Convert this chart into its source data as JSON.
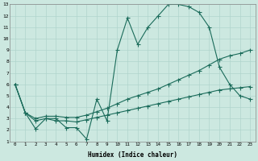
{
  "xlabel": "Humidex (Indice chaleur)",
  "bg_color": "#cce8e0",
  "line_color": "#1a6b5a",
  "grid_color": "#b0d4cc",
  "xlim": [
    -0.5,
    23.5
  ],
  "ylim": [
    1,
    13
  ],
  "xticks": [
    0,
    1,
    2,
    3,
    4,
    5,
    6,
    7,
    8,
    9,
    10,
    11,
    12,
    13,
    14,
    15,
    16,
    17,
    18,
    19,
    20,
    21,
    22,
    23
  ],
  "yticks": [
    1,
    2,
    3,
    4,
    5,
    6,
    7,
    8,
    9,
    10,
    11,
    12,
    13
  ],
  "line1_x": [
    0,
    1,
    2,
    3,
    4,
    5,
    6,
    7,
    8,
    9,
    10,
    11,
    12,
    13,
    14,
    15,
    16,
    17,
    18,
    19,
    20,
    21,
    22,
    23
  ],
  "line1_y": [
    6,
    3.5,
    2.1,
    3.0,
    3.0,
    2.2,
    2.2,
    1.2,
    4.7,
    2.8,
    9.0,
    11.8,
    9.5,
    11.0,
    12.0,
    13.0,
    13.0,
    12.8,
    12.3,
    11.0,
    7.5,
    6.0,
    5.0,
    4.7
  ],
  "line2_x": [
    0,
    1,
    2,
    3,
    4,
    5,
    6,
    7,
    8,
    9,
    10,
    11,
    12,
    13,
    14,
    15,
    16,
    17,
    18,
    19,
    20,
    21,
    22,
    23
  ],
  "line2_y": [
    6,
    3.5,
    3.0,
    3.2,
    3.2,
    3.1,
    3.1,
    3.3,
    3.6,
    3.9,
    4.3,
    4.7,
    5.0,
    5.3,
    5.6,
    6.0,
    6.4,
    6.8,
    7.2,
    7.7,
    8.2,
    8.5,
    8.7,
    9.0
  ],
  "line3_x": [
    0,
    1,
    2,
    3,
    4,
    5,
    6,
    7,
    8,
    9,
    10,
    11,
    12,
    13,
    14,
    15,
    16,
    17,
    18,
    19,
    20,
    21,
    22,
    23
  ],
  "line3_y": [
    6,
    3.5,
    2.8,
    3.0,
    2.8,
    2.8,
    2.7,
    2.9,
    3.1,
    3.3,
    3.5,
    3.7,
    3.9,
    4.1,
    4.3,
    4.5,
    4.7,
    4.9,
    5.1,
    5.3,
    5.5,
    5.6,
    5.7,
    5.8
  ]
}
